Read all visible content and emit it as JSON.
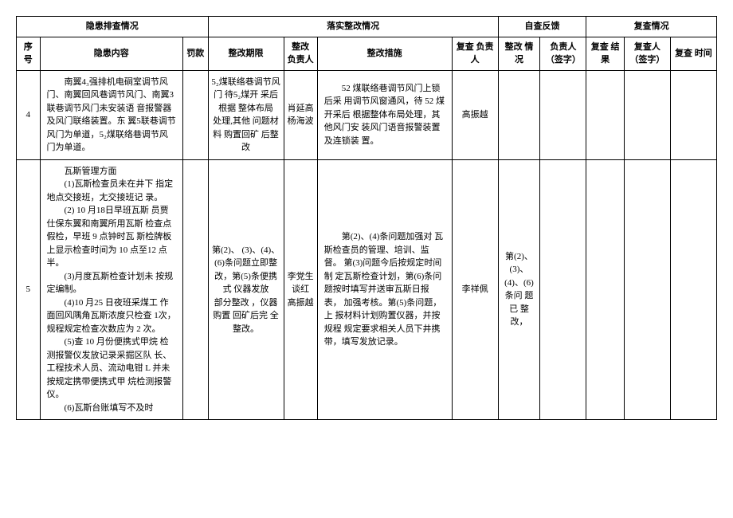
{
  "headers": {
    "group1": "隐患排查情况",
    "group2": "落实整改情况",
    "group3": "自查反馈",
    "group4": "复查情况",
    "seq": "序 号",
    "content": "隐患内容",
    "penalty": "罚款",
    "deadline": "整改期限",
    "person1": "整改 负责人",
    "measure": "整改措施",
    "person2": "复查 负责人",
    "status": "整改 情况",
    "sign1": "负责人（签字）",
    "result": "复查 结果",
    "sign2": "复查人（签字）",
    "time": "复查 时间"
  },
  "rows": [
    {
      "seq": "4",
      "content": "南翼4₃强排机电硐室调节风门、南翼回风巷调节风门、南翼3联巷调节风门未安装语 音报警器及风门联络装置。东 翼5联巷调节风门为单道，5₂煤联络巷调节风门为单道。",
      "penalty": "",
      "deadline": "5₂煤联络巷调节风门 待5₂煤开 采后根据 整体布局\n处理,其他 问题材料 购置回矿 后整改",
      "person1": "肖延高 杨海波",
      "measure": "52 煤联络巷调节风门上锁后采 用调节风窗通风，待 52 煤开采后 根据整体布局处理，其他风门安 装风门语音报警装置及连锁装 置。",
      "person2": "高振越",
      "status": "",
      "sign1": "",
      "result": "",
      "sign2": "",
      "time": ""
    },
    {
      "seq": "5",
      "content_html": "<p>瓦斯管理方面</p><p>(1)瓦斯检查员未在井下 指定地点交接班，尢交接班记 录。</p><p>(2) 10 月18日早班瓦斯 员贾仕保东翼和南翼所用瓦斯 检查点假检，早班 9 点钟时瓦 斯检牌板上显示检查时间为 10 点至12 点半。</p><p>(3)月度瓦斯检查计划未 按规定编制。</p><p>(4)10 月25 日夜班采煤工 作面回风隅角瓦斯浓度只检查 1次，规程规定检查次数应为 2 次。</p><p>(5)查 10 月份便携式甲烷 检测报警仪发放记录采掘区队 长、工程技术人员、流动电钳 L 并未按规定携带便携式甲 烷检测报警仪。</p><p>(6)瓦斯台账填写不及时</p>",
      "penalty": "",
      "deadline": "第(2)、 (3)、(4)、(6)条问题立即整改，第(5)条便携式 仪器发放\n部分整改 ，仪器购置 回矿后完 全整改。",
      "person1": "李党生 谈红 高振越",
      "measure": "第(2)、(4)条问题加强对 瓦斯检查员的管理、培训、监督。 第(3)问题今后按规定时间制 定瓦斯检查计划，第(6)条问 题按时填写并送审瓦斯日报表， 加强考核。第(5)条问题，上 报材料计划购置仪器，并按规程 规定要求相关人员下井携带，填写发放记录。",
      "person2": "李祥佩",
      "status": "第(2)、(3)、(4)、(6) 条问 题已 整改，",
      "sign1": "",
      "result": "",
      "sign2": "",
      "time": ""
    }
  ]
}
